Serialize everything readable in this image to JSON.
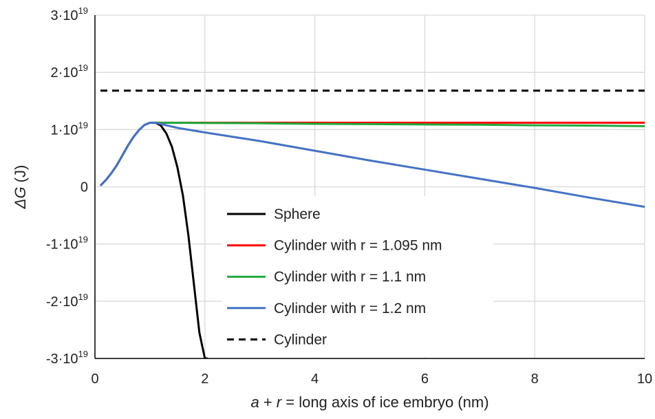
{
  "chart_data": {
    "type": "line",
    "xlabel_parts": [
      {
        "text": "a",
        "italic": true
      },
      {
        "text": " + ",
        "italic": false
      },
      {
        "text": "r",
        "italic": true
      },
      {
        "text": " = long axis of ice embryo (nm)",
        "italic": false
      }
    ],
    "ylabel_parts": [
      {
        "text": "ΔG",
        "italic": true
      },
      {
        "text": " (J)",
        "italic": false
      }
    ],
    "xlim": [
      0,
      10
    ],
    "ylim": [
      -3e+19,
      3e+19
    ],
    "grid": true,
    "legend_position": "center-bottom",
    "x_ticks": [
      {
        "value": 0,
        "label": "0"
      },
      {
        "value": 2,
        "label": "2"
      },
      {
        "value": 4,
        "label": "4"
      },
      {
        "value": 6,
        "label": "6"
      },
      {
        "value": 8,
        "label": "8"
      },
      {
        "value": 10,
        "label": "10"
      }
    ],
    "y_ticks": [
      {
        "value": 3e+19,
        "base": "3·10",
        "exp": "19"
      },
      {
        "value": 2e+19,
        "base": "2·10",
        "exp": "19"
      },
      {
        "value": 1e+19,
        "base": "1·10",
        "exp": "19"
      },
      {
        "value": 0,
        "base": "0",
        "exp": ""
      },
      {
        "value": -1e+19,
        "base": "-1·10",
        "exp": "19"
      },
      {
        "value": -2e+19,
        "base": "-2·10",
        "exp": "19"
      },
      {
        "value": -3e+19,
        "base": "-3·10",
        "exp": "19"
      }
    ],
    "series": [
      {
        "name": "Sphere",
        "color": "#000000",
        "dash": "solid",
        "x": [
          0.1,
          0.2,
          0.3,
          0.4,
          0.5,
          0.6,
          0.7,
          0.8,
          0.9,
          1.0,
          1.1,
          1.2,
          1.3,
          1.4,
          1.5,
          1.6,
          1.7,
          1.8,
          1.9,
          2.0,
          2.05
        ],
        "y": [
          2e+17,
          1.2e+18,
          2.4e+18,
          3.8e+18,
          5.5e+18,
          7.2e+18,
          8.7e+18,
          9.9e+18,
          1.08e+19,
          1.12e+19,
          1.12e+19,
          1.07e+19,
          9.3e+18,
          7e+18,
          3.4e+18,
          -1.5e+18,
          -8.5e+18,
          -1.7e+19,
          -2.55e+19,
          -3e+19,
          -3e+19
        ]
      },
      {
        "name": "Cylinder with r = 1.095 nm",
        "color": "#ff0000",
        "dash": "solid",
        "x": [
          1.1,
          2.0,
          3.0,
          4.0,
          5.0,
          6.0,
          7.0,
          8.0,
          9.0,
          10.0
        ],
        "y": [
          1.12e+19,
          1.12e+19,
          1.12e+19,
          1.12e+19,
          1.12e+19,
          1.12e+19,
          1.12e+19,
          1.12e+19,
          1.12e+19,
          1.12e+19
        ]
      },
      {
        "name": "Cylinder with r = 1.1 nm",
        "color": "#1faa3c",
        "dash": "solid",
        "x": [
          1.1,
          2.0,
          3.0,
          4.0,
          5.0,
          6.0,
          7.0,
          8.0,
          9.0,
          10.0
        ],
        "y": [
          1.12e+19,
          1.115e+19,
          1.11e+19,
          1.1e+19,
          1.095e+19,
          1.09e+19,
          1.085e+19,
          1.075e+19,
          1.07e+19,
          1.06e+19
        ]
      },
      {
        "name": "Cylinder with r = 1.2 nm",
        "color": "#4472c4",
        "dash": "solid",
        "x": [
          0.1,
          0.2,
          0.3,
          0.4,
          0.5,
          0.6,
          0.7,
          0.8,
          0.9,
          1.0,
          1.1,
          1.5,
          2.0,
          3.0,
          4.0,
          5.0,
          6.0,
          7.0,
          8.0,
          9.0,
          10.0
        ],
        "y": [
          2e+17,
          1.2e+18,
          2.4e+18,
          3.8e+18,
          5.5e+18,
          7.2e+18,
          8.7e+18,
          9.9e+18,
          1.08e+19,
          1.12e+19,
          1.12e+19,
          1.03e+19,
          9.5e+18,
          8e+18,
          6.3e+18,
          4.6e+18,
          3e+18,
          1.4e+18,
          -2e+17,
          -1.9e+18,
          -3.5e+18
        ]
      },
      {
        "name": "Cylinder",
        "color": "#000000",
        "dash": "dashed",
        "x": [
          0.1,
          10.0
        ],
        "y": [
          1.68e+19,
          1.68e+19
        ]
      }
    ]
  }
}
